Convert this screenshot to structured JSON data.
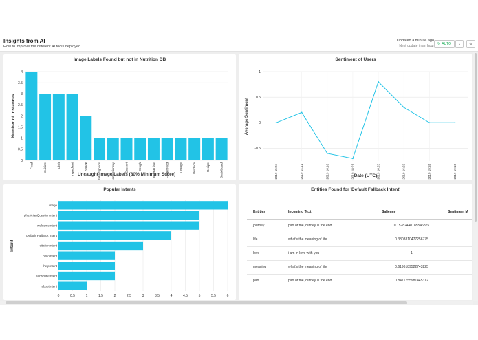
{
  "header": {
    "title": "Insights from AI",
    "subtitle": "How to improve the different AI tools deployed",
    "updated": "Updated a minute ago",
    "next_update": "Next update in an hour",
    "auto_label": "AUTO",
    "refresh_icon": "refresh-icon",
    "dropdown_icon": "chevron-down-icon",
    "edit_icon": "pencil-icon"
  },
  "colors": {
    "accent": "#22c3e6",
    "auto_green": "#13aa52",
    "background": "#eeeeee"
  },
  "charts": {
    "image_labels": {
      "title": "Image Labels Found but not in Nutrition DB",
      "chart_data": {
        "type": "bar",
        "categories": [
          "Food",
          "Cuisine",
          "Dish",
          "Ingredient",
          "Snack",
          "Baked goods",
          "Confectionery",
          "Dessert",
          "Dough",
          "Energy bar",
          "Finger food",
          "Orange",
          "Produce",
          "Recipe",
          "Skateboard"
        ],
        "values": [
          4,
          3,
          3,
          3,
          2,
          1,
          1,
          1,
          1,
          1,
          1,
          1,
          1,
          1,
          1
        ],
        "xlabel": "Uncaught Image Labels (80% Minimum Score)",
        "ylabel": "Number of Instances",
        "ylim": [
          0,
          4
        ],
        "yticks": [
          "0",
          "0.5",
          "1",
          "1.5",
          "2",
          "2.5",
          "3",
          "3.5",
          "4"
        ],
        "grid": true
      }
    },
    "sentiment": {
      "title": "Sentiment of Users",
      "chart_data": {
        "type": "line",
        "x": [
          "23-Apr-2019 15:24",
          "24-Apr-2019 14:41",
          "24-Apr-2019 16:16",
          "24-Apr-2019 18:21",
          "24-Apr-2019 16:23",
          "24-Apr-2019 16:23",
          "26-Apr-2019 19:55",
          "26-Apr-2019 19:15"
        ],
        "values": [
          0,
          0.2,
          -0.6,
          -0.7,
          0.8,
          0.3,
          0,
          0
        ],
        "xlabel": "Date (UTC)",
        "ylabel": "Average Sentiment",
        "ylim": [
          -0.75,
          1
        ],
        "yticks": [
          "-0.5",
          "0",
          "0.5",
          "1"
        ],
        "grid": true
      }
    },
    "intents": {
      "title": "Popular Intents",
      "chart_data": {
        "type": "bar",
        "orientation": "horizontal",
        "categories": [
          "image",
          "physicianQuestionIntent",
          "welcomeIntent",
          "Default Fallback Intent",
          "citationIntent",
          "helloIntent",
          "helpIntent",
          "subscribeIntent",
          "aboutIntent"
        ],
        "values": [
          6,
          5,
          5,
          4,
          3,
          2,
          2,
          2,
          1
        ],
        "ylabel": "Intent",
        "xlim": [
          0,
          6
        ],
        "xticks": [
          "0",
          "0.5",
          "1",
          "1.5",
          "2",
          "2.5",
          "3",
          "3.5",
          "4",
          "4.5",
          "5",
          "5.5",
          "6"
        ],
        "grid": true
      }
    }
  },
  "entities_table": {
    "title": "Entities Found for 'Default Fallback Intent'",
    "columns": [
      "Entities",
      "Incoming Text",
      "Salience",
      "Sentiment M"
    ],
    "rows": [
      [
        "journey",
        "part of the journey is the end",
        "0.15282440185546875",
        ""
      ],
      [
        "life",
        "what's the meaning of life",
        "0.3803810477256775",
        ""
      ],
      [
        "love",
        "i am in love with you",
        "1",
        ""
      ],
      [
        "meaning",
        "what's the meaning of life",
        "0.6196189522743225",
        ""
      ],
      [
        "part",
        "part of the journey is the end",
        "0.8471755981445312",
        ""
      ]
    ]
  }
}
